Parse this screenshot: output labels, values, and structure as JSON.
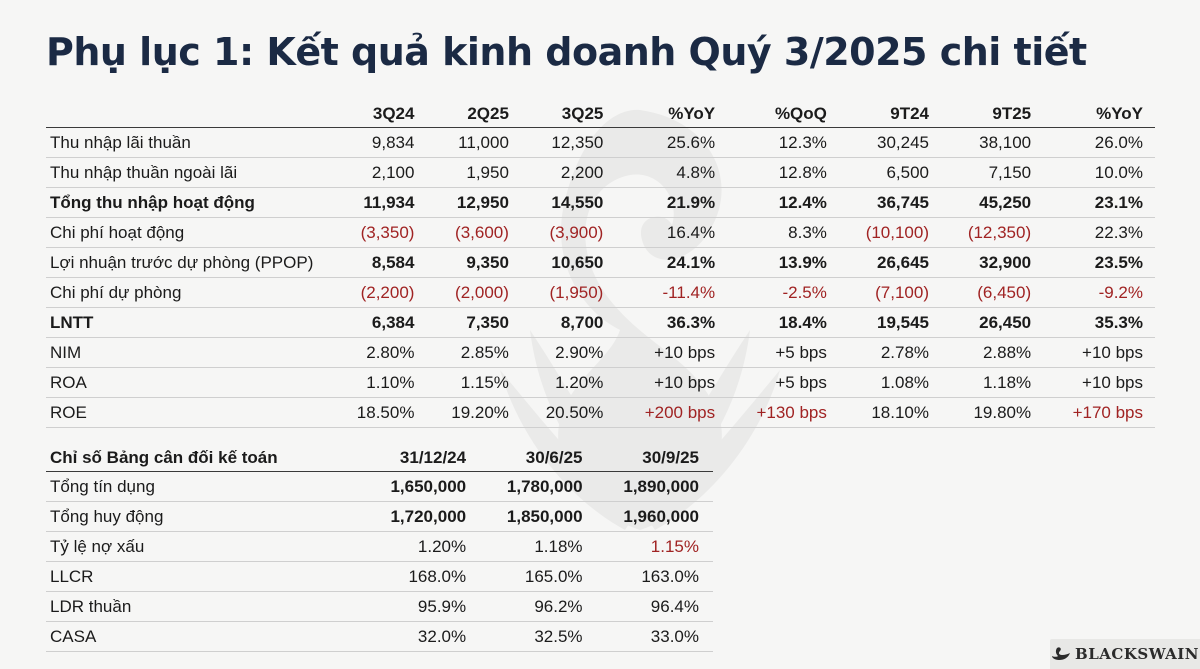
{
  "title": "Phụ lục 1: Kết quả kinh doanh Quý 3/2025 chi tiết",
  "income": {
    "headers": [
      "",
      "3Q24",
      "2Q25",
      "3Q25",
      "%YoY",
      "%QoQ",
      "9T24",
      "9T25",
      "%YoY"
    ],
    "rows": [
      {
        "label": "Thu nhập lãi thuần",
        "values": [
          "9,834",
          "11,000",
          "12,350",
          "25.6%",
          "12.3%",
          "30,245",
          "38,100",
          "26.0%"
        ]
      },
      {
        "label": "Thu nhập thuần ngoài lãi",
        "values": [
          "2,100",
          "1,950",
          "2,200",
          "4.8%",
          "12.8%",
          "6,500",
          "7,150",
          "10.0%"
        ]
      },
      {
        "label": "Tổng thu nhập hoạt động",
        "values": [
          "11,934",
          "12,950",
          "14,550",
          "21.9%",
          "12.4%",
          "36,745",
          "45,250",
          "23.1%"
        ]
      },
      {
        "label": "Chi phí hoạt động",
        "values": [
          "(3,350)",
          "(3,600)",
          "(3,900)",
          "16.4%",
          "8.3%",
          "(10,100)",
          "(12,350)",
          "22.3%"
        ]
      },
      {
        "label": "Lợi nhuận trước dự phòng (PPOP)",
        "values": [
          "8,584",
          "9,350",
          "10,650",
          "24.1%",
          "13.9%",
          "26,645",
          "32,900",
          "23.5%"
        ]
      },
      {
        "label": "Chi phí dự phòng",
        "values": [
          "(2,200)",
          "(2,000)",
          "(1,950)",
          "-11.4%",
          "-2.5%",
          "(7,100)",
          "(6,450)",
          "-9.2%"
        ]
      },
      {
        "label": "LNTT",
        "values": [
          "6,384",
          "7,350",
          "8,700",
          "36.3%",
          "18.4%",
          "19,545",
          "26,450",
          "35.3%"
        ]
      },
      {
        "label": "NIM",
        "values": [
          "2.80%",
          "2.85%",
          "2.90%",
          "+10 bps",
          "+5 bps",
          "2.78%",
          "2.88%",
          "+10 bps"
        ]
      },
      {
        "label": "ROA",
        "values": [
          "1.10%",
          "1.15%",
          "1.20%",
          "+10 bps",
          "+5 bps",
          "1.08%",
          "1.18%",
          "+10 bps"
        ]
      },
      {
        "label": "ROE",
        "values": [
          "18.50%",
          "19.20%",
          "20.50%",
          "+200 bps",
          "+130 bps",
          "18.10%",
          "19.80%",
          "+170 bps"
        ]
      }
    ]
  },
  "balance": {
    "headers": [
      "Chỉ số Bảng cân đối kế toán",
      "31/12/24",
      "30/6/25",
      "30/9/25"
    ],
    "rows": [
      {
        "label": "Tổng tín dụng",
        "values": [
          "1,650,000",
          "1,780,000",
          "1,890,000"
        ]
      },
      {
        "label": "Tổng huy động",
        "values": [
          "1,720,000",
          "1,850,000",
          "1,960,000"
        ]
      },
      {
        "label": "Tỷ lệ nợ xấu",
        "values": [
          "1.20%",
          "1.18%",
          "1.15%"
        ]
      },
      {
        "label": "LLCR",
        "values": [
          "168.0%",
          "165.0%",
          "163.0%"
        ]
      },
      {
        "label": "LDR thuần",
        "values": [
          "95.9%",
          "96.2%",
          "96.4%"
        ]
      },
      {
        "label": "CASA",
        "values": [
          "32.0%",
          "32.5%",
          "33.0%"
        ]
      }
    ]
  },
  "logo": {
    "text": "BLACKSWAIN",
    "icon": "swan-icon"
  },
  "colors": {
    "title": "#1b2a44",
    "negative": "#a02323",
    "background": "#f6f6f5"
  }
}
